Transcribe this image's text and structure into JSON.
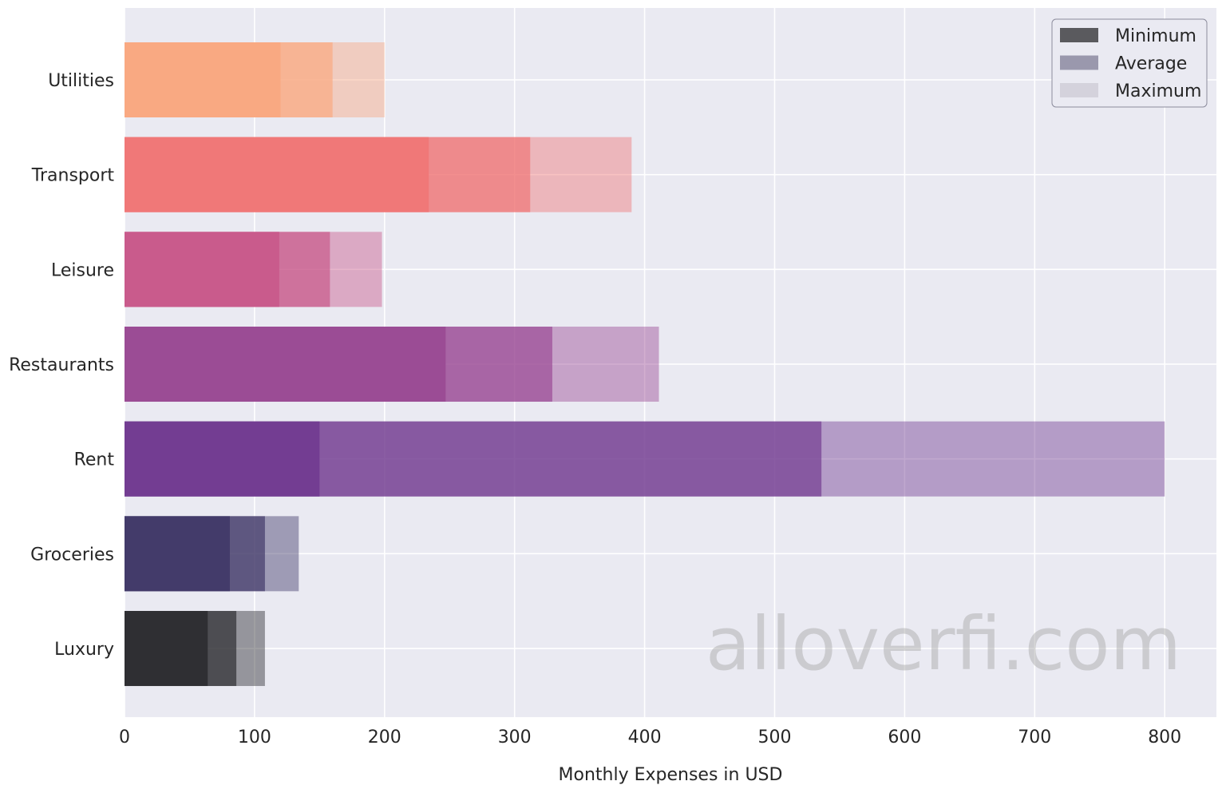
{
  "chart_data": {
    "type": "bar",
    "orientation": "horizontal",
    "stacked": "overlay",
    "categories": [
      "Utilities",
      "Transport",
      "Leisure",
      "Restaurants",
      "Rent",
      "Groceries",
      "Luxury"
    ],
    "series": [
      {
        "name": "Minimum",
        "values": [
          120,
          234,
          119,
          247,
          150,
          81,
          64
        ]
      },
      {
        "name": "Average",
        "values": [
          160,
          312,
          158,
          329,
          536,
          108,
          86
        ]
      },
      {
        "name": "Maximum",
        "values": [
          200,
          390,
          198,
          411,
          800,
          134,
          108
        ]
      }
    ],
    "category_colors": {
      "Utilities": "#f9a982",
      "Transport": "#f07878",
      "Leisure": "#c95b8c",
      "Restaurants": "#9b4c95",
      "Rent": "#733d92",
      "Groceries": "#433b6a",
      "Luxury": "#2f2f33"
    },
    "series_opacity": {
      "Minimum": 1.0,
      "Average": 0.7,
      "Maximum": 0.45
    },
    "legend_swatch_colors": {
      "Minimum": "#5a5a5e",
      "Average": "#9a98ad",
      "Maximum": "#d4d2dc"
    },
    "xlabel": "Monthly Expenses in USD",
    "ylabel": "",
    "xlim": [
      0,
      840
    ],
    "xticks": [
      0,
      100,
      200,
      300,
      400,
      500,
      600,
      700,
      800
    ],
    "grid": true,
    "legend_position": "top-right",
    "background_color": "#eaeaf2",
    "watermark": "alloverfi.com"
  }
}
